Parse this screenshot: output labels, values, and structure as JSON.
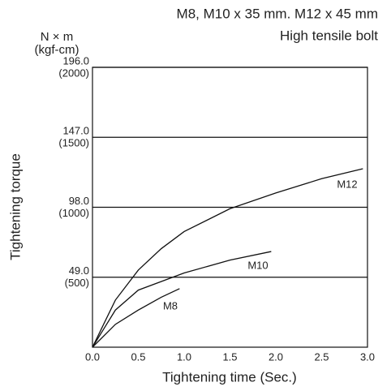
{
  "chart_data": {
    "type": "line",
    "title": "M8, M10 x 35 mm. M12 x 45 mm",
    "subtitle": "High tensile bolt",
    "x_label": "Tightening time (Sec.)",
    "y_label": "Tightening torque",
    "y_unit": "N × m",
    "y2_unit": "(kgf-cm)",
    "xlim": [
      0,
      3
    ],
    "xticks": [
      {
        "value": 0,
        "label": "0.0"
      },
      0.5,
      {
        "value": 1,
        "label": "1.0"
      },
      1.5,
      {
        "value": 2,
        "label": "2.0"
      },
      2.5,
      {
        "value": 3,
        "label": "3.0"
      }
    ],
    "ylim": [
      0,
      196
    ],
    "yticks": [
      {
        "value": 49,
        "label": "49.0"
      },
      {
        "value": 98,
        "label": "98.0"
      },
      {
        "value": 147,
        "label": "147.0"
      },
      {
        "value": 196,
        "label": "196.0"
      }
    ],
    "y2lim": [
      0,
      2000
    ],
    "y2ticks": [
      {
        "value": 500,
        "label": "(500)"
      },
      {
        "value": 1000,
        "label": "(1000)"
      },
      {
        "value": 1500,
        "label": "(1500)"
      },
      {
        "value": 2000,
        "label": "(2000)"
      }
    ],
    "grid": true,
    "series": [
      {
        "name": "M12",
        "color": "#111111",
        "x": [
          0,
          0.25,
          0.5,
          0.75,
          1,
          1.5,
          2,
          2.5,
          2.95
        ],
        "values": [
          0,
          33,
          54,
          69,
          81,
          97,
          108,
          118,
          125
        ]
      },
      {
        "name": "M10",
        "color": "#111111",
        "x": [
          0,
          0.25,
          0.5,
          1,
          1.5,
          1.95
        ],
        "values": [
          0,
          26,
          40,
          52,
          61,
          67
        ]
      },
      {
        "name": "M8",
        "color": "#111111",
        "x": [
          0,
          0.25,
          0.5,
          0.75,
          0.95
        ],
        "values": [
          0,
          16,
          26,
          35,
          41
        ]
      }
    ]
  }
}
